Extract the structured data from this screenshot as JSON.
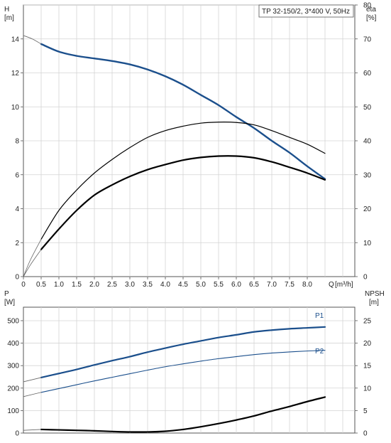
{
  "chart_data": [
    {
      "type": "line",
      "title": "TP 32-150/2, 3*400 V, 50Hz",
      "left_axis": {
        "label": "H",
        "unit": "[m]",
        "ylim": [
          0,
          16
        ],
        "ticks": [
          0,
          2,
          4,
          6,
          8,
          10,
          12,
          14
        ]
      },
      "right_axis": {
        "label": "eta",
        "unit": "[%]",
        "ylim": [
          0,
          80
        ],
        "ticks": [
          0,
          10,
          20,
          30,
          40,
          50,
          60,
          70,
          80
        ]
      },
      "x_axis": {
        "label": "Q",
        "unit": "[m³/h]",
        "xlim": [
          0,
          8.5
        ],
        "ticks": [
          "0",
          "0.5",
          "1.0",
          "1.5",
          "2.0",
          "2.5",
          "3.0",
          "3.5",
          "4.0",
          "4.5",
          "5.0",
          "5.5",
          "6.0",
          "6.5",
          "7.0",
          "7.5",
          "8.0"
        ]
      },
      "grid": true,
      "series": [
        {
          "axis": "left",
          "color": "#1b4f8c",
          "width": 2.4,
          "x": [
            0.5,
            1,
            1.5,
            2,
            2.5,
            3,
            3.5,
            4,
            4.5,
            5,
            5.5,
            6,
            6.5,
            7,
            7.5,
            8,
            8.5
          ],
          "y": [
            13.7,
            13.25,
            13.0,
            12.85,
            12.7,
            12.5,
            12.2,
            11.8,
            11.3,
            10.7,
            10.1,
            9.4,
            8.75,
            8.0,
            7.3,
            6.5,
            5.75
          ]
        },
        {
          "axis": "left",
          "color": "#666666",
          "width": 0.8,
          "x": [
            0,
            0.25,
            0.5
          ],
          "y": [
            14.2,
            14.0,
            13.7
          ]
        },
        {
          "axis": "right",
          "color": "#000000",
          "width": 1.2,
          "x": [
            0.5,
            1,
            1.5,
            2,
            2.5,
            3,
            3.5,
            4,
            4.5,
            5,
            5.5,
            6,
            6.5,
            7,
            7.5,
            8,
            8.5
          ],
          "y": [
            11,
            19.5,
            25.5,
            30.5,
            34.5,
            38,
            41,
            43,
            44.3,
            45.2,
            45.5,
            45.4,
            44.7,
            43,
            41,
            39,
            36.3
          ]
        },
        {
          "axis": "right",
          "color": "#000000",
          "width": 2.2,
          "x": [
            0.5,
            1,
            1.5,
            2,
            2.5,
            3,
            3.5,
            4,
            4.5,
            5,
            5.5,
            6,
            6.5,
            7,
            7.5,
            8,
            8.5
          ],
          "y": [
            8,
            14,
            19.5,
            24,
            27,
            29.5,
            31.5,
            33,
            34.3,
            35.1,
            35.5,
            35.5,
            35,
            33.8,
            32.2,
            30.5,
            28.5
          ]
        },
        {
          "axis": "right",
          "color": "#666666",
          "width": 0.8,
          "x": [
            0,
            0.2,
            0.5
          ],
          "y": [
            0,
            5,
            11
          ]
        },
        {
          "axis": "right",
          "color": "#666666",
          "width": 0.8,
          "x": [
            0,
            0.2,
            0.5
          ],
          "y": [
            0,
            3.5,
            8
          ]
        }
      ]
    },
    {
      "type": "line",
      "left_axis": {
        "label": "P",
        "unit": "[W]",
        "ylim": [
          0,
          560
        ],
        "ticks": [
          0,
          100,
          200,
          300,
          400,
          500
        ]
      },
      "right_axis": {
        "label": "NPSH",
        "unit": "[m]",
        "ylim": [
          0,
          28
        ],
        "ticks": [
          0,
          5,
          10,
          15,
          20,
          25
        ]
      },
      "x_axis": {
        "xlim": [
          0,
          8.5
        ]
      },
      "grid": true,
      "series": [
        {
          "name": "P1",
          "axis": "left",
          "color": "#1b4f8c",
          "width": 2.2,
          "x": [
            0.5,
            1,
            1.5,
            2,
            2.5,
            3,
            3.5,
            4,
            4.5,
            5,
            5.5,
            6,
            6.5,
            7,
            7.5,
            8,
            8.5
          ],
          "y": [
            247,
            265,
            283,
            303,
            322,
            340,
            360,
            378,
            395,
            410,
            425,
            437,
            450,
            458,
            464,
            468,
            472
          ]
        },
        {
          "name": "P2",
          "axis": "left",
          "color": "#1b4f8c",
          "width": 1.1,
          "x": [
            0.5,
            1,
            1.5,
            2,
            2.5,
            3,
            3.5,
            4,
            4.5,
            5,
            5.5,
            6,
            6.5,
            7,
            7.5,
            8,
            8.5
          ],
          "y": [
            181,
            198,
            215,
            232,
            248,
            264,
            280,
            295,
            308,
            320,
            331,
            340,
            349,
            356,
            361,
            365,
            368
          ]
        },
        {
          "axis": "left",
          "color": "#666666",
          "width": 0.8,
          "x": [
            0,
            0.5
          ],
          "y": [
            228,
            247
          ]
        },
        {
          "axis": "left",
          "color": "#666666",
          "width": 0.8,
          "x": [
            0,
            0.5
          ],
          "y": [
            162,
            181
          ]
        },
        {
          "axis": "right",
          "color": "#000000",
          "width": 2.2,
          "x": [
            0.5,
            1,
            1.5,
            2,
            2.5,
            3,
            3.5,
            4,
            4.5,
            5,
            5.5,
            6,
            6.5,
            7,
            7.5,
            8,
            8.5
          ],
          "y": [
            0.8,
            0.7,
            0.6,
            0.5,
            0.35,
            0.25,
            0.25,
            0.4,
            0.8,
            1.4,
            2.1,
            2.9,
            3.8,
            4.9,
            5.9,
            7.0,
            8.0
          ]
        },
        {
          "axis": "right",
          "color": "#666666",
          "width": 0.8,
          "x": [
            0,
            0.5
          ],
          "y": [
            0.6,
            0.8
          ]
        }
      ]
    }
  ]
}
